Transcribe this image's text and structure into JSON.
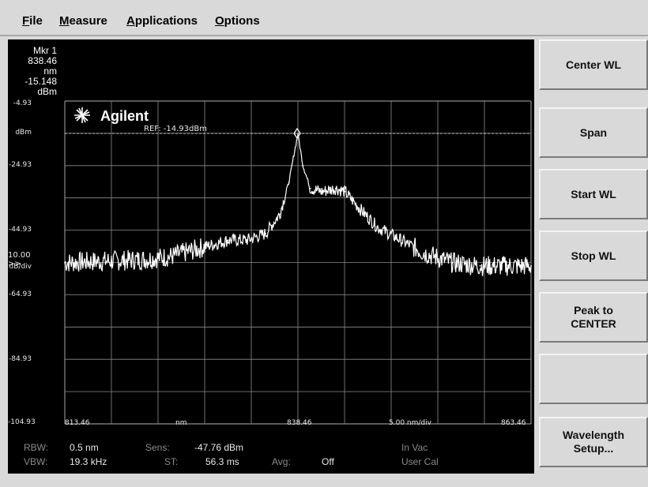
{
  "menu": {
    "file": {
      "u": "F",
      "rest": "ile"
    },
    "measure": {
      "u": "M",
      "rest": "easure"
    },
    "applications": {
      "u": "A",
      "rest": "pplications"
    },
    "options": {
      "u": "O",
      "rest": "ptions"
    }
  },
  "marker": {
    "name": "Mkr 1",
    "wavelength": "838.46 nm",
    "power": "-15.148 dBm"
  },
  "display": {
    "brand": "Agilent",
    "ref_label": "REF: -14.93dBm",
    "y_unit": "dBm",
    "scale_value": "10.00",
    "scale_unit": "dB/div",
    "x_unit": "nm",
    "x_div": "5.00 nm/div",
    "accent_trace": "#ffffff",
    "grid_color": "#8c8c8c"
  },
  "params": {
    "rbw_label": "RBW:",
    "rbw_value": "0.5 nm",
    "vbw_label": "VBW:",
    "vbw_value": "19.3 kHz",
    "sens_label": "Sens:",
    "sens_value": "-47.76 dBm",
    "st_label": "ST:",
    "st_value": "56.3 ms",
    "avg_label": "Avg:",
    "avg_value": "Off",
    "medium": "In Vac",
    "cal": "User Cal"
  },
  "softkeys": [
    "Center WL",
    "Span",
    "Start WL",
    "Stop WL",
    "Peak to\nCENTER",
    "",
    "Wavelength\nSetup..."
  ],
  "chart_data": {
    "type": "line",
    "y_tick_labels": [
      "-4.93",
      "-24.93",
      "-44.93",
      "-64.93",
      "-84.93",
      "-104.93"
    ],
    "x_tick_labels": [
      "813.46",
      "838.46",
      "863.46"
    ],
    "xlim": [
      813.46,
      863.46
    ],
    "ylim": [
      -104.93,
      -4.93
    ],
    "series": [
      {
        "x": [
          813.46,
          818,
          822,
          825,
          828,
          831,
          833,
          835,
          836.5,
          837.5,
          838.0,
          838.46,
          839.0,
          839.8,
          841,
          842.5,
          843.5,
          845,
          847,
          849.5,
          852,
          855,
          858,
          861,
          863.46
        ],
        "values": [
          -55,
          -54.5,
          -54,
          -53,
          -50.5,
          -48,
          -48,
          -46,
          -40,
          -30,
          -22,
          -15.1,
          -25,
          -32,
          -33,
          -32,
          -33,
          -38,
          -44,
          -48,
          -52,
          -55,
          -56,
          -56,
          -56
        ]
      }
    ]
  }
}
